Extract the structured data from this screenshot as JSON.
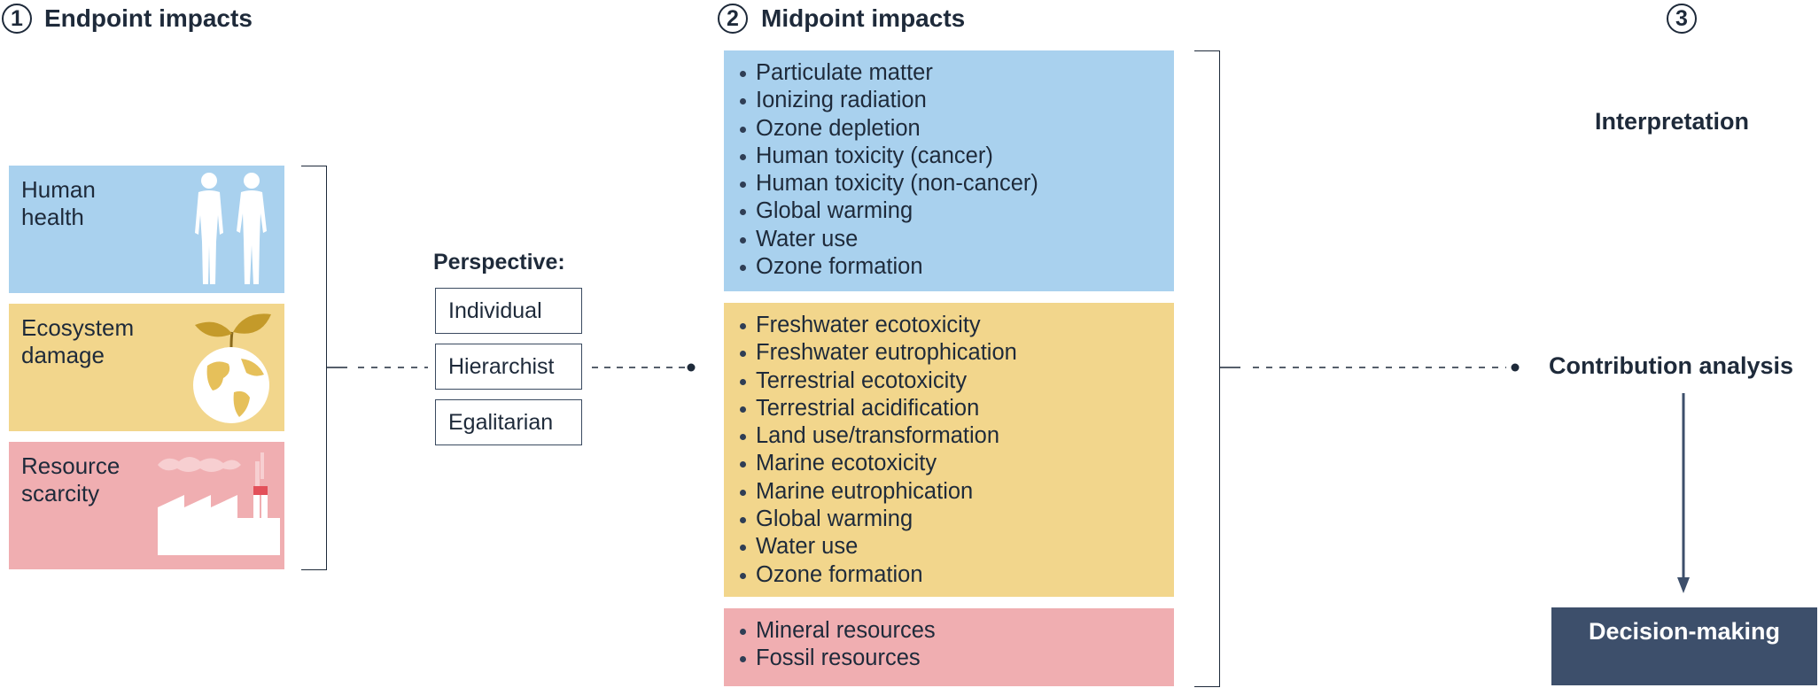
{
  "section1": {
    "number": "1",
    "title": "Endpoint impacts"
  },
  "section2": {
    "number": "2",
    "title": "Midpoint impacts"
  },
  "section3": {
    "number": "3"
  },
  "endpoints": [
    {
      "label": "Human\nhealth",
      "color": "#a9d1ee",
      "icon": "human-figures-icon"
    },
    {
      "label": "Ecosystem\ndamage",
      "color": "#f2d68c",
      "icon": "globe-sprout-icon"
    },
    {
      "label": "Resource\nscarcity",
      "color": "#f0aeb1",
      "icon": "factory-icon"
    }
  ],
  "perspective": {
    "title": "Perspective:",
    "options": [
      "Individual",
      "Hierarchist",
      "Egalitarian"
    ]
  },
  "midpoints": {
    "health": {
      "color": "#a9d1ee",
      "items": [
        "Particulate matter",
        "Ionizing radiation",
        "Ozone depletion",
        "Human toxicity (cancer)",
        "Human toxicity (non-cancer)",
        "Global warming",
        "Water use",
        "Ozone formation"
      ]
    },
    "ecosystem": {
      "color": "#f2d68c",
      "items": [
        "Freshwater ecotoxicity",
        "Freshwater eutrophication",
        "Terrestrial ecotoxicity",
        "Terrestrial acidification",
        "Land use/transformation",
        "Marine ecotoxicity",
        "Marine eutrophication",
        "Global warming",
        "Water use",
        "Ozone formation"
      ]
    },
    "resources": {
      "color": "#f0aeb1",
      "items": [
        "Mineral resources",
        "Fossil resources"
      ]
    }
  },
  "interpretation": {
    "interpretation_label": "Interpretation",
    "contribution_label": "Contribution analysis",
    "decision_label": "Decision-making",
    "decision_color": "#3d4f6b"
  }
}
